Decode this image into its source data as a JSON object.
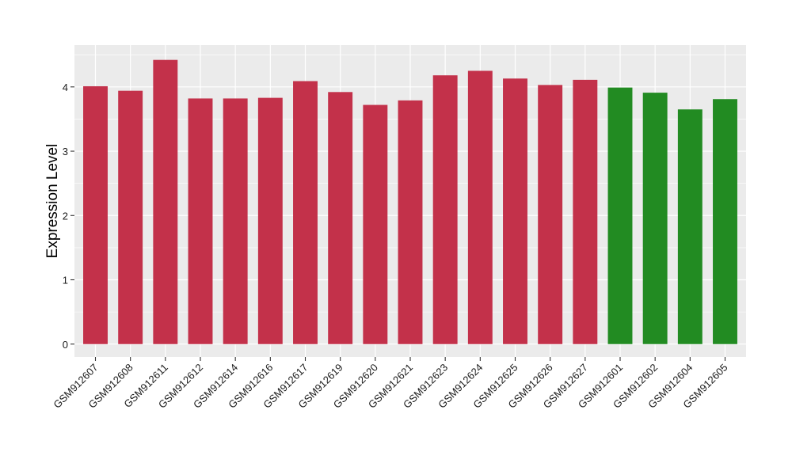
{
  "chart_data": {
    "type": "bar",
    "title": "",
    "xlabel": "",
    "ylabel": "Expression Level",
    "ylim": [
      -0.2,
      4.65
    ],
    "yticks": [
      0,
      1,
      2,
      3,
      4
    ],
    "grid": true,
    "categories": [
      "GSM912607",
      "GSM912608",
      "GSM912611",
      "GSM912612",
      "GSM912614",
      "GSM912616",
      "GSM912617",
      "GSM912619",
      "GSM912620",
      "GSM912621",
      "GSM912623",
      "GSM912624",
      "GSM912625",
      "GSM912626",
      "GSM912627",
      "GSM912601",
      "GSM912602",
      "GSM912604",
      "GSM912605"
    ],
    "values": [
      4.01,
      3.94,
      4.42,
      3.82,
      3.82,
      3.83,
      4.09,
      3.92,
      3.72,
      3.79,
      4.18,
      4.25,
      4.13,
      4.03,
      4.11,
      3.99,
      3.91,
      3.65,
      3.81
    ],
    "group_colors": {
      "group_1": "#C3314A",
      "group_2": "#228B22"
    },
    "bar_groups": [
      "group_1",
      "group_1",
      "group_1",
      "group_1",
      "group_1",
      "group_1",
      "group_1",
      "group_1",
      "group_1",
      "group_1",
      "group_1",
      "group_1",
      "group_1",
      "group_1",
      "group_1",
      "group_2",
      "group_2",
      "group_2",
      "group_2"
    ],
    "panel_background": "#EBEBEB",
    "gridline_color": "#FFFFFF"
  }
}
